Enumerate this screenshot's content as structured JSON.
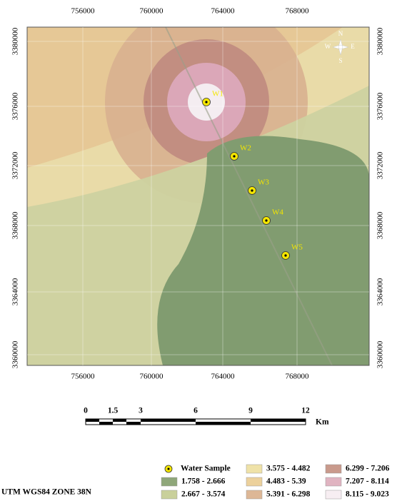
{
  "map": {
    "x_ticks": [
      "756000",
      "760000",
      "764000",
      "768000"
    ],
    "y_ticks": [
      "3380000",
      "3376000",
      "3372000",
      "3368000",
      "3364000",
      "3360000"
    ],
    "wells": [
      "W1",
      "W2",
      "W3",
      "W4",
      "W5"
    ],
    "north_arrow": {
      "n": "N",
      "e": "E",
      "s": "S",
      "w": "W"
    },
    "scale_bar": {
      "labels": [
        "0",
        "1.5",
        "3",
        "6",
        "9",
        "12"
      ],
      "unit": "Km"
    }
  },
  "legend": {
    "sample": "Water Sample",
    "classes": [
      {
        "label": "1.758 - 2.666",
        "color": "#8fa77a"
      },
      {
        "label": "2.667 - 3.574",
        "color": "#c9d09b"
      },
      {
        "label": "3.575 - 4.482",
        "color": "#efe2a8"
      },
      {
        "label": "4.483 - 5.39",
        "color": "#ecd19c"
      },
      {
        "label": "5.391 - 6.298",
        "color": "#ddb796"
      },
      {
        "label": "6.299 - 7.206",
        "color": "#c99a8c"
      },
      {
        "label": "7.207 - 8.114",
        "color": "#e0b4c1"
      },
      {
        "label": "8.115 - 9.023",
        "color": "#f7eef2"
      }
    ]
  },
  "projection": "UTM WGS84 ZONE 38N"
}
